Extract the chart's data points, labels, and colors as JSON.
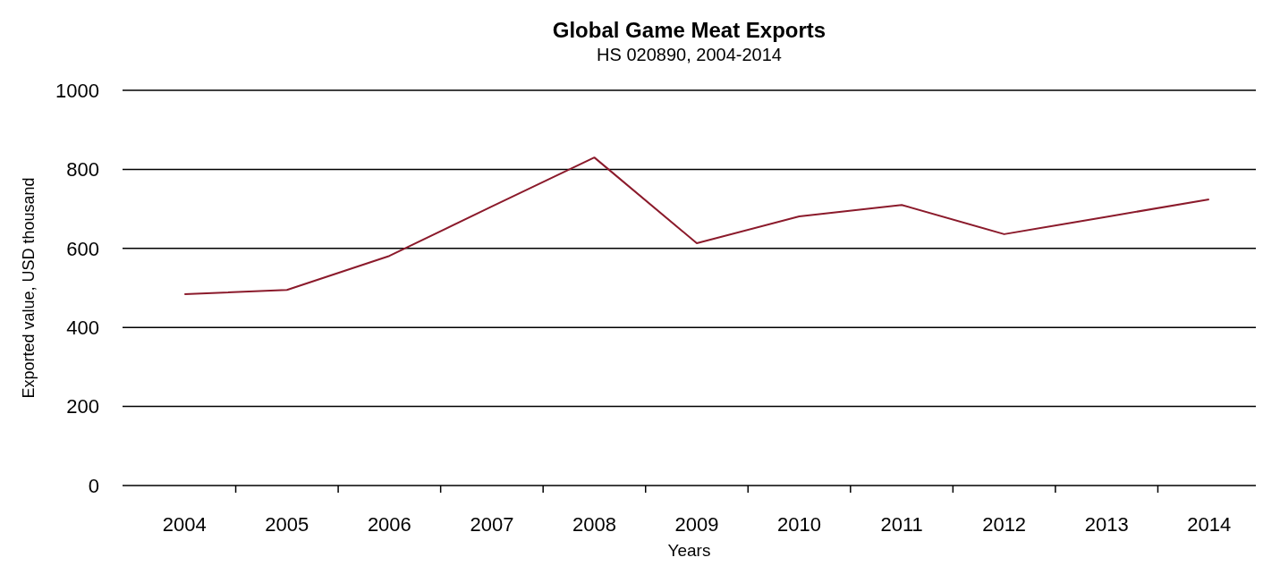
{
  "chart_data": {
    "type": "line",
    "title": "Global Game Meat Exports",
    "subtitle": "HS 020890, 2004-2014",
    "xlabel": "Years",
    "ylabel": "Exported value, USD thousand",
    "categories": [
      "2004",
      "2005",
      "2006",
      "2007",
      "2008",
      "2009",
      "2010",
      "2011",
      "2012",
      "2013",
      "2014"
    ],
    "series": [
      {
        "color": "#8b1a2b",
        "values": [
          484,
          495,
          581,
          706,
          830,
          613,
          681,
          710,
          636,
          680,
          724
        ]
      }
    ],
    "ylim": [
      0,
      1000
    ],
    "yticks": [
      0,
      200,
      400,
      600,
      800,
      1000
    ],
    "grid": "y",
    "marker": "none",
    "line_style": "solid"
  }
}
